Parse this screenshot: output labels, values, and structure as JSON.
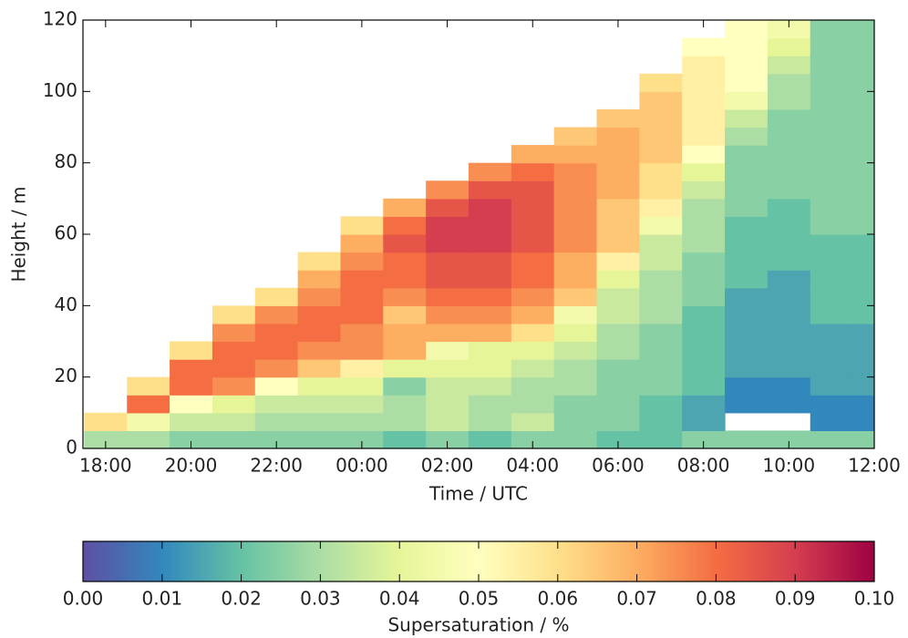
{
  "chart_data": {
    "type": "heatmap",
    "x_label": "Time / UTC",
    "y_label": "Height / m",
    "colorbar_label": "Supersaturation / %",
    "xlim": [
      17.47,
      36
    ],
    "ylim": [
      0,
      120
    ],
    "clim": [
      0,
      0.1
    ],
    "xticks": [
      {
        "value": 18,
        "label": "18:00"
      },
      {
        "value": 20,
        "label": "20:00"
      },
      {
        "value": 22,
        "label": "22:00"
      },
      {
        "value": 24,
        "label": "00:00"
      },
      {
        "value": 26,
        "label": "02:00"
      },
      {
        "value": 28,
        "label": "04:00"
      },
      {
        "value": 30,
        "label": "06:00"
      },
      {
        "value": 32,
        "label": "08:00"
      },
      {
        "value": 34,
        "label": "10:00"
      },
      {
        "value": 36,
        "label": "12:00"
      }
    ],
    "yticks": [
      0,
      20,
      40,
      60,
      80,
      100,
      120
    ],
    "cticks": [
      {
        "value": 0,
        "label": "0.00"
      },
      {
        "value": 0.01,
        "label": "0.01"
      },
      {
        "value": 0.02,
        "label": "0.02"
      },
      {
        "value": 0.03,
        "label": "0.03"
      },
      {
        "value": 0.04,
        "label": "0.04"
      },
      {
        "value": 0.05,
        "label": "0.05"
      },
      {
        "value": 0.06,
        "label": "0.06"
      },
      {
        "value": 0.07,
        "label": "0.07"
      },
      {
        "value": 0.08,
        "label": "0.08"
      },
      {
        "value": 0.09,
        "label": "0.09"
      },
      {
        "value": 0.1,
        "label": "0.10"
      }
    ],
    "colormap": [
      "#5e4fa2",
      "#3288bd",
      "#66c2a5",
      "#abdda4",
      "#e6f598",
      "#ffffbf",
      "#fee08b",
      "#fdae61",
      "#f46d43",
      "#d53e4f",
      "#9e0142"
    ],
    "x": [
      18,
      19,
      20,
      21,
      22,
      23,
      24,
      25,
      26,
      27,
      28,
      29,
      30,
      31,
      32,
      33,
      34,
      35,
      36
    ],
    "y": [
      2.5,
      7.5,
      12.5,
      17.5,
      22.5,
      27.5,
      32.5,
      37.5,
      42.5,
      47.5,
      52.5,
      57.5,
      62.5,
      67.5,
      72.5,
      77.5,
      82.5,
      87.5,
      92.5,
      97.5,
      102.5,
      107.5,
      112.5,
      117.5
    ],
    "values": [
      [
        0.03,
        0.06,
        null,
        null,
        null,
        null,
        null,
        null,
        null,
        null,
        null,
        null,
        null,
        null,
        null,
        null,
        null,
        null,
        null,
        null,
        null,
        null,
        null,
        null
      ],
      [
        0.03,
        0.045,
        0.08,
        0.06,
        null,
        null,
        null,
        null,
        null,
        null,
        null,
        null,
        null,
        null,
        null,
        null,
        null,
        null,
        null,
        null,
        null,
        null,
        null,
        null
      ],
      [
        0.025,
        0.035,
        0.05,
        0.08,
        0.08,
        0.06,
        null,
        null,
        null,
        null,
        null,
        null,
        null,
        null,
        null,
        null,
        null,
        null,
        null,
        null,
        null,
        null,
        null,
        null
      ],
      [
        0.025,
        0.035,
        0.04,
        0.075,
        0.08,
        0.08,
        0.075,
        0.06,
        null,
        null,
        null,
        null,
        null,
        null,
        null,
        null,
        null,
        null,
        null,
        null,
        null,
        null,
        null,
        null
      ],
      [
        0.025,
        0.03,
        0.035,
        0.05,
        0.075,
        0.08,
        0.08,
        0.075,
        0.06,
        null,
        null,
        null,
        null,
        null,
        null,
        null,
        null,
        null,
        null,
        null,
        null,
        null,
        null,
        null
      ],
      [
        0.025,
        0.03,
        0.035,
        0.04,
        0.065,
        0.075,
        0.08,
        0.08,
        0.075,
        0.07,
        0.06,
        null,
        null,
        null,
        null,
        null,
        null,
        null,
        null,
        null,
        null,
        null,
        null,
        null
      ],
      [
        0.025,
        0.03,
        0.035,
        0.04,
        0.055,
        0.075,
        0.075,
        0.08,
        0.08,
        0.08,
        0.075,
        0.07,
        0.06,
        null,
        null,
        null,
        null,
        null,
        null,
        null,
        null,
        null,
        null,
        null
      ],
      [
        0.02,
        0.03,
        0.03,
        0.025,
        0.04,
        0.07,
        0.07,
        0.065,
        0.075,
        0.08,
        0.08,
        0.085,
        0.08,
        0.07,
        null,
        null,
        null,
        null,
        null,
        null,
        null,
        null,
        null,
        null
      ],
      [
        0.025,
        0.035,
        0.035,
        0.035,
        0.04,
        0.045,
        0.07,
        0.075,
        0.08,
        0.085,
        0.085,
        0.09,
        0.09,
        0.085,
        0.075,
        null,
        null,
        null,
        null,
        null,
        null,
        null,
        null,
        null
      ],
      [
        0.02,
        0.03,
        0.03,
        0.035,
        0.04,
        0.04,
        0.07,
        0.075,
        0.08,
        0.085,
        0.085,
        0.09,
        0.09,
        0.09,
        0.085,
        0.075,
        null,
        null,
        null,
        null,
        null,
        null,
        null,
        null
      ],
      [
        0.025,
        0.035,
        0.03,
        0.03,
        0.035,
        0.04,
        0.06,
        0.07,
        0.075,
        0.08,
        0.08,
        0.085,
        0.085,
        0.085,
        0.085,
        0.08,
        0.07,
        null,
        null,
        null,
        null,
        null,
        null,
        null
      ],
      [
        0.025,
        0.025,
        0.025,
        0.03,
        0.03,
        0.035,
        0.04,
        0.045,
        0.065,
        0.07,
        0.07,
        0.075,
        0.075,
        0.075,
        0.075,
        0.075,
        0.07,
        0.065,
        null,
        null,
        null,
        null,
        null,
        null
      ],
      [
        0.02,
        0.025,
        0.025,
        0.025,
        0.025,
        0.03,
        0.03,
        0.035,
        0.035,
        0.04,
        0.055,
        0.065,
        0.065,
        0.065,
        0.07,
        0.07,
        0.07,
        0.07,
        0.065,
        null,
        null,
        null,
        null,
        null
      ],
      [
        0.02,
        0.02,
        0.02,
        0.025,
        0.025,
        0.025,
        0.025,
        0.03,
        0.03,
        0.03,
        0.035,
        0.035,
        0.045,
        0.055,
        0.06,
        0.06,
        0.065,
        0.065,
        0.065,
        0.065,
        0.06,
        null,
        null,
        null
      ],
      [
        0.025,
        0.015,
        0.015,
        0.02,
        0.02,
        0.02,
        0.02,
        0.02,
        0.025,
        0.025,
        0.025,
        0.03,
        0.03,
        0.03,
        0.035,
        0.04,
        0.05,
        0.055,
        0.055,
        0.055,
        0.055,
        0.055,
        0.05,
        null
      ],
      [
        0.025,
        null,
        0.01,
        0.01,
        0.015,
        0.015,
        0.015,
        0.015,
        0.015,
        0.02,
        0.02,
        0.02,
        0.02,
        0.025,
        0.025,
        0.025,
        0.025,
        0.03,
        0.035,
        0.045,
        0.05,
        0.05,
        0.05,
        0.05
      ],
      [
        0.025,
        null,
        0.01,
        0.01,
        0.015,
        0.015,
        0.015,
        0.015,
        0.015,
        0.015,
        0.02,
        0.02,
        0.02,
        0.02,
        0.025,
        0.025,
        0.025,
        0.025,
        0.025,
        0.03,
        0.03,
        0.035,
        0.04,
        0.045
      ],
      [
        0.025,
        0.01,
        0.01,
        0.015,
        0.015,
        0.015,
        0.015,
        0.02,
        0.02,
        0.02,
        0.02,
        0.02,
        0.025,
        0.025,
        0.025,
        0.025,
        0.025,
        0.025,
        0.025,
        0.025,
        0.025,
        0.025,
        0.025,
        0.025
      ],
      [
        0.025,
        0.01,
        0.01,
        0.015,
        0.015,
        0.015,
        0.015,
        0.02,
        0.02,
        0.02,
        0.02,
        0.02,
        0.025,
        0.025,
        0.025,
        0.025,
        0.025,
        0.025,
        0.025,
        0.025,
        0.025,
        0.025,
        0.025,
        0.025
      ]
    ]
  }
}
